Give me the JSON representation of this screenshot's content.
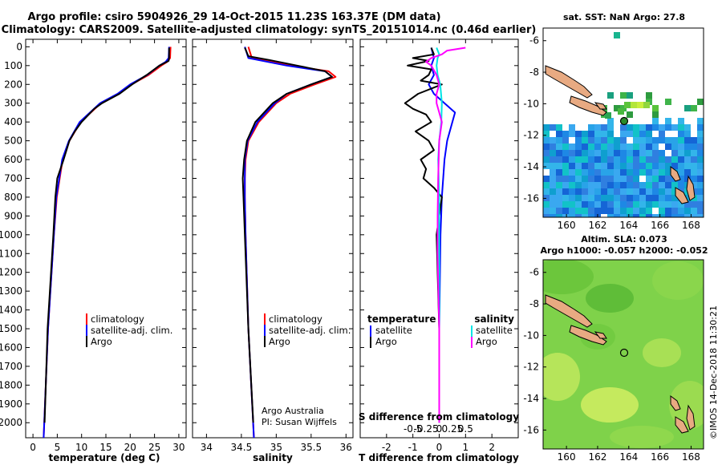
{
  "header": {
    "line1": "Argo profile: csiro 5904926_29 14-Oct-2015 11.23S 163.37E (DM data)",
    "line2": "Climatology: CARS2009. Satellite-adjusted climatology: synTS_20151014.nc (0.46d earlier)"
  },
  "depth_ticks": [
    0,
    100,
    200,
    300,
    400,
    500,
    600,
    700,
    800,
    900,
    1000,
    1100,
    1200,
    1300,
    1400,
    1500,
    1600,
    1700,
    1800,
    1900,
    2000
  ],
  "colors": {
    "climatology": "#ff0000",
    "satellite": "#0000ff",
    "argo": "#000000",
    "sal_satellite": "#00e5e5",
    "sal_argo": "#ff00ff"
  },
  "chart_data": [
    {
      "type": "line",
      "panel": "temperature",
      "xlabel": "temperature (deg C)",
      "xlim": [
        -1.5,
        31.5
      ],
      "ylim": [
        2080,
        -40
      ],
      "x_ticks": [
        "0",
        "5",
        "10",
        "15",
        "20",
        "25",
        "30"
      ],
      "x_tick_values": [
        0,
        5,
        10,
        15,
        20,
        25,
        30
      ],
      "legend": [
        "climatology",
        "satellite-adj. clim.",
        "Argo"
      ],
      "series": [
        {
          "name": "climatology",
          "depth": [
            0,
            60,
            80,
            100,
            150,
            200,
            250,
            300,
            400,
            500,
            600,
            800,
            1000,
            1500,
            2080
          ],
          "values": [
            28.3,
            28.2,
            27.6,
            26.4,
            23.8,
            20.3,
            17.6,
            14.0,
            9.8,
            7.5,
            6.1,
            4.9,
            4.3,
            3.1,
            2.2
          ]
        },
        {
          "name": "satellite-adj. clim.",
          "depth": [
            0,
            60,
            80,
            100,
            150,
            200,
            250,
            300,
            400,
            500,
            600,
            800,
            1000,
            1500,
            2080
          ],
          "values": [
            28.0,
            27.9,
            27.3,
            26.0,
            23.5,
            20.0,
            17.4,
            13.8,
            9.6,
            7.4,
            6.0,
            4.8,
            4.3,
            3.1,
            2.2
          ]
        },
        {
          "name": "Argo",
          "depth": [
            5,
            60,
            75,
            100,
            150,
            200,
            250,
            300,
            330,
            400,
            450,
            500,
            600,
            700,
            800,
            1000,
            1500,
            2000
          ],
          "values": [
            28.0,
            28.0,
            27.9,
            26.0,
            23.4,
            20.4,
            17.8,
            14.2,
            12.6,
            10.0,
            8.6,
            7.5,
            6.3,
            5.0,
            4.6,
            4.2,
            3.0,
            2.4
          ]
        }
      ]
    },
    {
      "type": "line",
      "panel": "salinity",
      "xlabel": "salinity",
      "xlim": [
        33.8,
        36.1
      ],
      "ylim": [
        2080,
        -40
      ],
      "x_ticks": [
        "34",
        "34.5",
        "35",
        "35.5",
        "36"
      ],
      "x_tick_values": [
        34,
        34.5,
        35,
        35.5,
        36
      ],
      "legend": [
        "climatology",
        "satellite-adj. clim.",
        "Argo"
      ],
      "credit_line1": "Argo Australia",
      "credit_line2": "PI: Susan Wijffels",
      "series": [
        {
          "name": "climatology",
          "depth": [
            0,
            60,
            100,
            130,
            160,
            200,
            250,
            300,
            400,
            500,
            600,
            700,
            800,
            1000,
            1500,
            2080
          ],
          "values": [
            34.6,
            34.65,
            35.2,
            35.75,
            35.85,
            35.55,
            35.2,
            35.0,
            34.75,
            34.6,
            34.56,
            34.55,
            34.55,
            34.56,
            34.6,
            34.68
          ]
        },
        {
          "name": "satellite-adj. clim.",
          "depth": [
            0,
            60,
            100,
            130,
            160,
            200,
            250,
            300,
            400,
            500,
            600,
            700,
            800,
            1000,
            1500,
            2080
          ],
          "values": [
            34.55,
            34.6,
            35.15,
            35.7,
            35.8,
            35.5,
            35.15,
            34.98,
            34.73,
            34.59,
            34.55,
            34.55,
            34.55,
            34.56,
            34.6,
            34.68
          ]
        },
        {
          "name": "Argo",
          "depth": [
            5,
            50,
            70,
            100,
            130,
            160,
            200,
            250,
            300,
            400,
            500,
            600,
            700,
            800,
            1000,
            1500,
            2000
          ],
          "values": [
            34.55,
            34.6,
            34.9,
            35.3,
            35.7,
            35.8,
            35.5,
            35.15,
            34.95,
            34.7,
            34.58,
            34.54,
            34.52,
            34.53,
            34.55,
            34.6,
            34.67
          ]
        }
      ]
    },
    {
      "type": "line",
      "panel": "differences",
      "xlabel": "T difference from climatology",
      "xlim": [
        -3,
        3
      ],
      "ylim": [
        2080,
        -40
      ],
      "x_ticks": [
        "-2",
        "-1",
        "0",
        "1",
        "2"
      ],
      "x_tick_values": [
        -2,
        -1,
        0,
        1,
        2
      ],
      "top_label": "S difference from climatology",
      "top_ticks": [
        "-0.5",
        "-0.25",
        "0",
        "0.25",
        "0.5"
      ],
      "top_tick_values": [
        -0.5,
        -0.25,
        0,
        0.25,
        0.5
      ],
      "legend_left_title": "temperature",
      "legend_left": [
        "satellite",
        "Argo"
      ],
      "legend_right_title": "salinity",
      "legend_right": [
        "satellite",
        "Argo"
      ],
      "series": [
        {
          "name": "T satellite",
          "axis": "T",
          "depth": [
            5,
            60,
            100,
            150,
            200,
            250,
            300,
            350,
            400,
            500,
            600,
            800,
            1000,
            1500,
            2000
          ],
          "values": [
            -0.3,
            -0.2,
            -0.3,
            -0.2,
            -0.4,
            -0.2,
            0.2,
            0.6,
            0.5,
            0.3,
            0.2,
            0.1,
            0.05,
            0.0,
            0.0
          ]
        },
        {
          "name": "T Argo",
          "axis": "T",
          "depth": [
            5,
            40,
            60,
            75,
            100,
            120,
            150,
            180,
            200,
            250,
            300,
            330,
            360,
            400,
            450,
            500,
            550,
            600,
            650,
            700,
            750,
            800,
            900,
            1000,
            1500,
            2000
          ],
          "values": [
            -0.3,
            -0.2,
            -1.0,
            -0.4,
            -1.2,
            -0.3,
            -0.4,
            -0.7,
            0.1,
            -0.8,
            -1.3,
            -1.0,
            -0.5,
            -0.3,
            -0.9,
            -0.4,
            -0.2,
            -0.7,
            -0.5,
            -0.6,
            -0.2,
            0.1,
            0.0,
            -0.1,
            0.0,
            0.0
          ]
        },
        {
          "name": "S satellite",
          "axis": "S",
          "depth": [
            5,
            40,
            60,
            100,
            150,
            200,
            300,
            400,
            500,
            600,
            800,
            1000,
            1500,
            2000
          ],
          "values": [
            -0.05,
            0.0,
            -0.03,
            -0.05,
            -0.03,
            0.02,
            0.05,
            0.04,
            0.0,
            -0.02,
            0.0,
            0.0,
            0.0,
            0.0
          ]
        },
        {
          "name": "S Argo",
          "axis": "S",
          "depth": [
            5,
            20,
            40,
            60,
            80,
            100,
            150,
            200,
            250,
            300,
            350,
            400,
            500,
            700,
            900,
            1100,
            1500,
            2000
          ],
          "values": [
            0.5,
            0.15,
            0.05,
            -0.15,
            -0.25,
            -0.15,
            -0.05,
            0.0,
            -0.05,
            -0.05,
            0.0,
            0.05,
            0.0,
            -0.02,
            -0.03,
            -0.03,
            0.0,
            0.0
          ]
        }
      ]
    }
  ],
  "maps": {
    "sst": {
      "title": "sat. SST: NaN Argo: 27.8",
      "x_ticks": [
        "160",
        "162",
        "164",
        "166",
        "168"
      ],
      "y_ticks": [
        "-6",
        "-8",
        "-10",
        "-12",
        "-14",
        "-16"
      ]
    },
    "sla": {
      "title1": "Altim. SLA: 0.073",
      "title2": "Argo h1000: -0.057 h2000: -0.052",
      "x_ticks": [
        "160",
        "162",
        "164",
        "166",
        "168"
      ],
      "y_ticks": [
        "-6",
        "-8",
        "-10",
        "-12",
        "-14",
        "-16"
      ]
    }
  },
  "footer": {
    "stamp": "©IMOS 14-Dec-2018 11:30:21"
  }
}
